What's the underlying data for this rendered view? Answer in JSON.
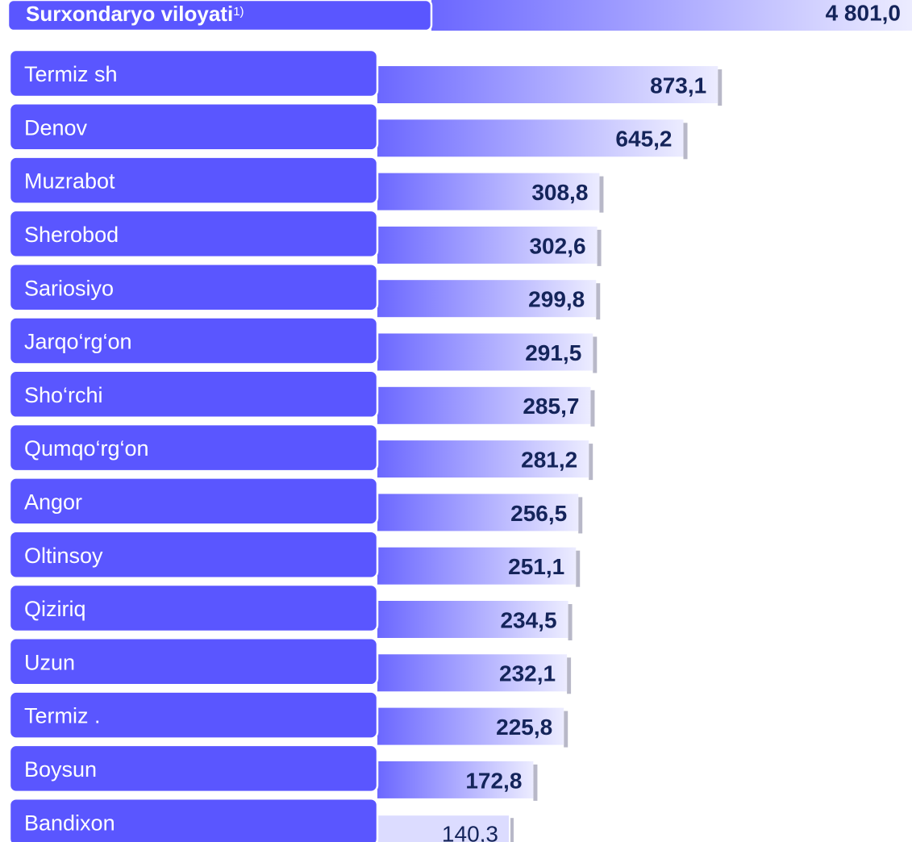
{
  "chart_data": {
    "type": "bar",
    "orientation": "horizontal",
    "log_scale": true,
    "title": "Surxondaryo viloyati",
    "title_note": "1)",
    "total": 4801.0,
    "total_label": "4 801,0",
    "categories": [
      "Termiz sh",
      "Denov",
      "Muzrabot",
      "Sherobod",
      "Sariosiyo",
      "Jarqo‘rg‘on",
      "Sho‘rchi",
      "Qumqo‘rg‘on",
      "Angor",
      "Oltinsoy",
      "Qiziriq",
      "Uzun",
      "Termiz .",
      "Boysun",
      "Bandixon"
    ],
    "values": [
      873.1,
      645.2,
      308.8,
      302.6,
      299.8,
      291.5,
      285.7,
      281.2,
      256.5,
      251.1,
      234.5,
      232.1,
      225.8,
      172.8,
      140.3
    ],
    "value_labels": [
      "873,1",
      "645,2",
      "308,8",
      "302,6",
      "299,8",
      "291,5",
      "285,7",
      "281,2",
      "256,5",
      "251,1",
      "234,5",
      "232,1",
      "225,8",
      "172,8",
      "140,3"
    ],
    "color": "#5a56ff",
    "label_color": "#5a56ff",
    "value_color": "#14245a"
  }
}
